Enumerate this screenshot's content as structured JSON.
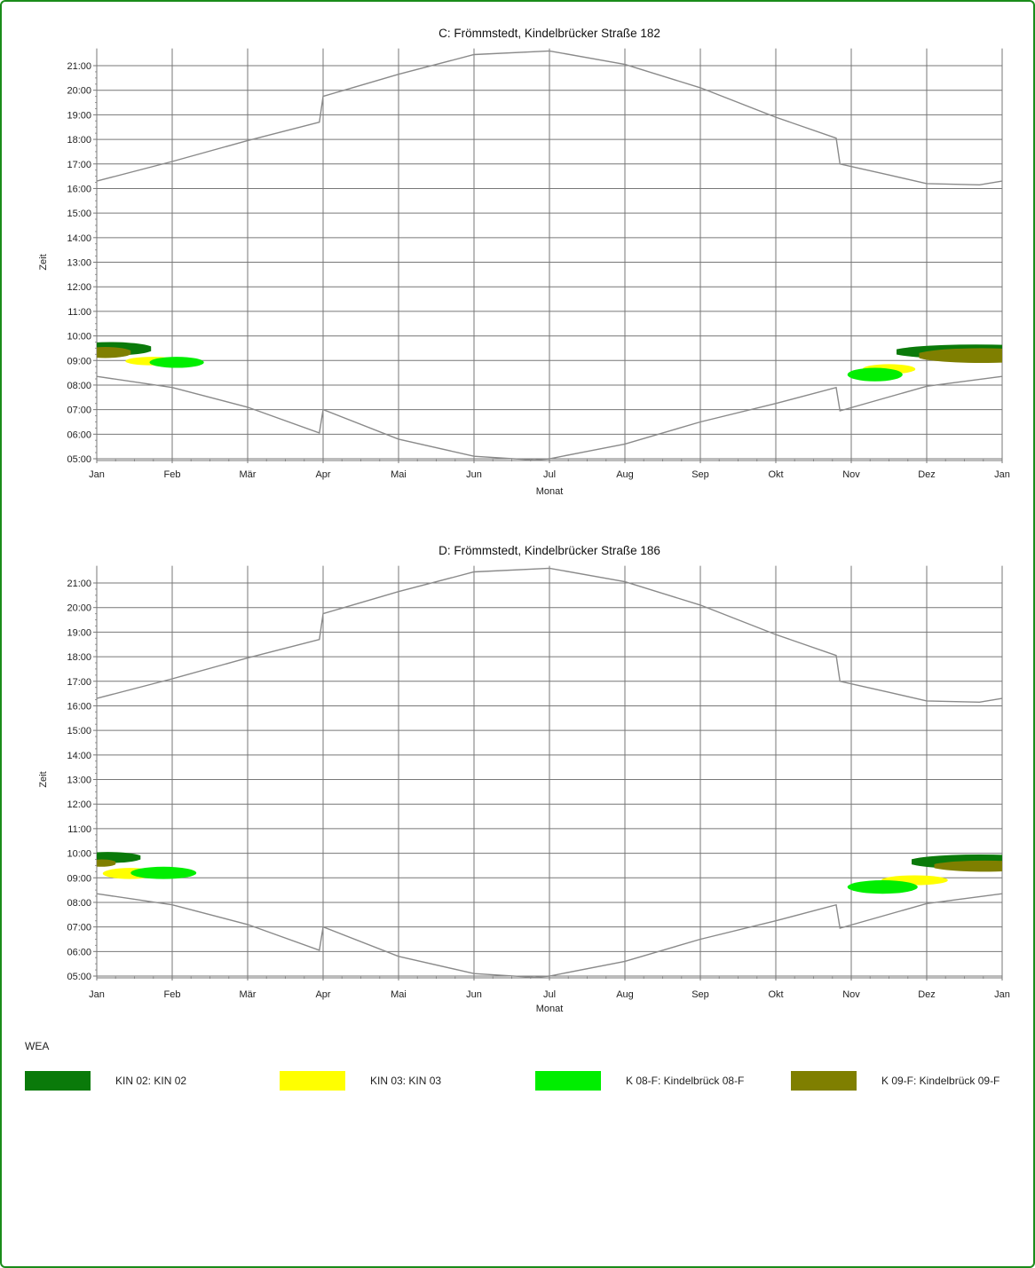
{
  "legend": {
    "title": "WEA",
    "items": [
      {
        "label": "KIN 02: KIN 02",
        "color": "#0a7a0a"
      },
      {
        "label": "KIN 03: KIN 03",
        "color": "#ffff00"
      },
      {
        "label": "K 08-F: Kindelbrück 08-F",
        "color": "#00ee00"
      },
      {
        "label": "K 09-F: Kindelbrück 09-F",
        "color": "#7f7f00"
      }
    ]
  },
  "chart_data": [
    {
      "type": "area",
      "title": "C: Frömmstedt, Kindelbrücker Straße 182",
      "xlabel": "Monat",
      "ylabel": "Zeit",
      "x_ticks": [
        "Jan",
        "Feb",
        "Mär",
        "Apr",
        "Mai",
        "Jun",
        "Jul",
        "Aug",
        "Sep",
        "Okt",
        "Nov",
        "Dez",
        "Jan"
      ],
      "y_ticks": [
        "05:00",
        "06:00",
        "07:00",
        "08:00",
        "09:00",
        "10:00",
        "11:00",
        "12:00",
        "13:00",
        "14:00",
        "15:00",
        "16:00",
        "17:00",
        "18:00",
        "19:00",
        "20:00",
        "21:00"
      ],
      "ylim": [
        5,
        21.7
      ],
      "grid": true,
      "sunset": [
        [
          0,
          16.3
        ],
        [
          1,
          17.1
        ],
        [
          2,
          17.95
        ],
        [
          2.95,
          18.7
        ],
        [
          3,
          19.75
        ],
        [
          4,
          20.65
        ],
        [
          5,
          21.45
        ],
        [
          6,
          21.6
        ],
        [
          7,
          21.05
        ],
        [
          8,
          20.1
        ],
        [
          9,
          18.9
        ],
        [
          9.8,
          18.05
        ],
        [
          9.85,
          17.0
        ],
        [
          10.5,
          16.55
        ],
        [
          11,
          16.2
        ],
        [
          11.7,
          16.15
        ],
        [
          12,
          16.3
        ]
      ],
      "sunrise": [
        [
          0,
          8.35
        ],
        [
          1,
          7.9
        ],
        [
          2,
          7.1
        ],
        [
          2.95,
          6.05
        ],
        [
          3,
          7.0
        ],
        [
          4,
          5.8
        ],
        [
          5,
          5.1
        ],
        [
          5.8,
          4.95
        ],
        [
          6,
          5.0
        ],
        [
          7,
          5.6
        ],
        [
          8,
          6.5
        ],
        [
          9,
          7.25
        ],
        [
          9.8,
          7.9
        ],
        [
          9.85,
          6.95
        ],
        [
          11,
          7.95
        ],
        [
          12,
          8.35
        ]
      ],
      "series": [
        {
          "name": "KIN 02: KIN 02",
          "color": "#0a7a0a",
          "regions": [
            {
              "x_start": 0.0,
              "x_end": 0.72,
              "y_low": 9.2,
              "y_high": 9.75
            },
            {
              "x_start": 10.6,
              "x_end": 12.0,
              "y_low": 9.05,
              "y_high": 9.65
            }
          ]
        },
        {
          "name": "KIN 03: KIN 03",
          "color": "#ffff00",
          "regions": [
            {
              "x_start": 0.38,
              "x_end": 1.1,
              "y_low": 8.8,
              "y_high": 9.15
            },
            {
              "x_start": 10.15,
              "x_end": 10.85,
              "y_low": 8.45,
              "y_high": 8.85
            }
          ]
        },
        {
          "name": "K 08-F: Kindelbrück 08-F",
          "color": "#00ee00",
          "regions": [
            {
              "x_start": 0.7,
              "x_end": 1.42,
              "y_low": 8.7,
              "y_high": 9.15
            },
            {
              "x_start": 9.95,
              "x_end": 10.68,
              "y_low": 8.15,
              "y_high": 8.7
            }
          ]
        },
        {
          "name": "K 09-F: Kindelbrück 09-F",
          "color": "#7f7f00",
          "regions": [
            {
              "x_start": 0.0,
              "x_end": 0.45,
              "y_low": 9.1,
              "y_high": 9.55
            },
            {
              "x_start": 10.9,
              "x_end": 12.0,
              "y_low": 8.9,
              "y_high": 9.5
            }
          ]
        }
      ]
    },
    {
      "type": "area",
      "title": "D: Frömmstedt, Kindelbrücker Straße 186",
      "xlabel": "Monat",
      "ylabel": "Zeit",
      "x_ticks": [
        "Jan",
        "Feb",
        "Mär",
        "Apr",
        "Mai",
        "Jun",
        "Jul",
        "Aug",
        "Sep",
        "Okt",
        "Nov",
        "Dez",
        "Jan"
      ],
      "y_ticks": [
        "05:00",
        "06:00",
        "07:00",
        "08:00",
        "09:00",
        "10:00",
        "11:00",
        "12:00",
        "13:00",
        "14:00",
        "15:00",
        "16:00",
        "17:00",
        "18:00",
        "19:00",
        "20:00",
        "21:00"
      ],
      "ylim": [
        5,
        21.7
      ],
      "grid": true,
      "sunset": [
        [
          0,
          16.3
        ],
        [
          1,
          17.1
        ],
        [
          2,
          17.95
        ],
        [
          2.95,
          18.7
        ],
        [
          3,
          19.75
        ],
        [
          4,
          20.65
        ],
        [
          5,
          21.45
        ],
        [
          6,
          21.6
        ],
        [
          7,
          21.05
        ],
        [
          8,
          20.1
        ],
        [
          9,
          18.9
        ],
        [
          9.8,
          18.05
        ],
        [
          9.85,
          17.0
        ],
        [
          10.5,
          16.55
        ],
        [
          11,
          16.2
        ],
        [
          11.7,
          16.15
        ],
        [
          12,
          16.3
        ]
      ],
      "sunrise": [
        [
          0,
          8.35
        ],
        [
          1,
          7.9
        ],
        [
          2,
          7.1
        ],
        [
          2.95,
          6.05
        ],
        [
          3,
          7.0
        ],
        [
          4,
          5.8
        ],
        [
          5,
          5.1
        ],
        [
          5.8,
          4.95
        ],
        [
          6,
          5.0
        ],
        [
          7,
          5.6
        ],
        [
          8,
          6.5
        ],
        [
          9,
          7.25
        ],
        [
          9.8,
          7.9
        ],
        [
          9.85,
          6.95
        ],
        [
          11,
          7.95
        ],
        [
          12,
          8.35
        ]
      ],
      "series": [
        {
          "name": "KIN 02: KIN 02",
          "color": "#0a7a0a",
          "regions": [
            {
              "x_start": 0.0,
              "x_end": 0.58,
              "y_low": 9.6,
              "y_high": 10.05
            },
            {
              "x_start": 10.8,
              "x_end": 12.0,
              "y_low": 9.35,
              "y_high": 9.95
            }
          ]
        },
        {
          "name": "KIN 03: KIN 03",
          "color": "#ffff00",
          "regions": [
            {
              "x_start": 0.08,
              "x_end": 0.8,
              "y_low": 8.95,
              "y_high": 9.4
            },
            {
              "x_start": 10.4,
              "x_end": 11.28,
              "y_low": 8.7,
              "y_high": 9.1
            }
          ]
        },
        {
          "name": "K 08-F: Kindelbrück 08-F",
          "color": "#00ee00",
          "regions": [
            {
              "x_start": 0.45,
              "x_end": 1.32,
              "y_low": 8.95,
              "y_high": 9.45
            },
            {
              "x_start": 9.95,
              "x_end": 10.88,
              "y_low": 8.35,
              "y_high": 8.9
            }
          ]
        },
        {
          "name": "K 09-F: Kindelbrück 09-F",
          "color": "#7f7f00",
          "regions": [
            {
              "x_start": 0.0,
              "x_end": 0.25,
              "y_low": 9.45,
              "y_high": 9.75
            },
            {
              "x_start": 11.1,
              "x_end": 12.0,
              "y_low": 9.25,
              "y_high": 9.7
            }
          ]
        }
      ]
    }
  ]
}
